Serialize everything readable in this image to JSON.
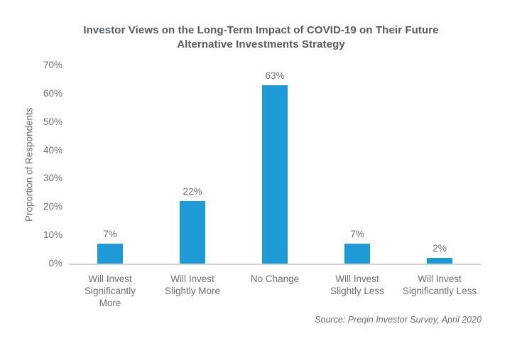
{
  "chart_data": {
    "type": "bar",
    "title": "Investor Views on the Long-Term Impact of COVID-19 on Their Future Alternative Investments Strategy",
    "title_lines": [
      "Investor Views on the Long-Term Impact of COVID-19 on Their Future",
      "Alternative Investments Strategy"
    ],
    "categories": [
      "Will Invest Significantly More",
      "Will Invest Slightly More",
      "No Change",
      "Will Invest Slightly Less",
      "Will Invest Significantly Less"
    ],
    "category_lines": [
      [
        "Will Invest",
        "Significantly",
        "More"
      ],
      [
        "Will Invest",
        "Slightly More"
      ],
      [
        "No Change"
      ],
      [
        "Will Invest",
        "Slightly Less"
      ],
      [
        "Will Invest",
        "Significantly Less"
      ]
    ],
    "values": [
      7,
      22,
      63,
      7,
      2
    ],
    "value_labels": [
      "7%",
      "22%",
      "63%",
      "7%",
      "2%"
    ],
    "ylabel": "Proportion of Respondents",
    "xlabel": "",
    "ylim": [
      0,
      70
    ],
    "yticks": [
      0,
      10,
      20,
      30,
      40,
      50,
      60,
      70
    ],
    "ytick_labels": [
      "0%",
      "10%",
      "20%",
      "30%",
      "40%",
      "50%",
      "60%",
      "70%"
    ],
    "grid": false,
    "legend": false,
    "source": "Source: Preqin Investor Survey, April 2020"
  },
  "colors": {
    "background": "#FFFFFF",
    "title": "#58595B",
    "axis_text": "#6D6E71",
    "baseline": "#D1D3D4",
    "bar": "#1E9BD7"
  }
}
